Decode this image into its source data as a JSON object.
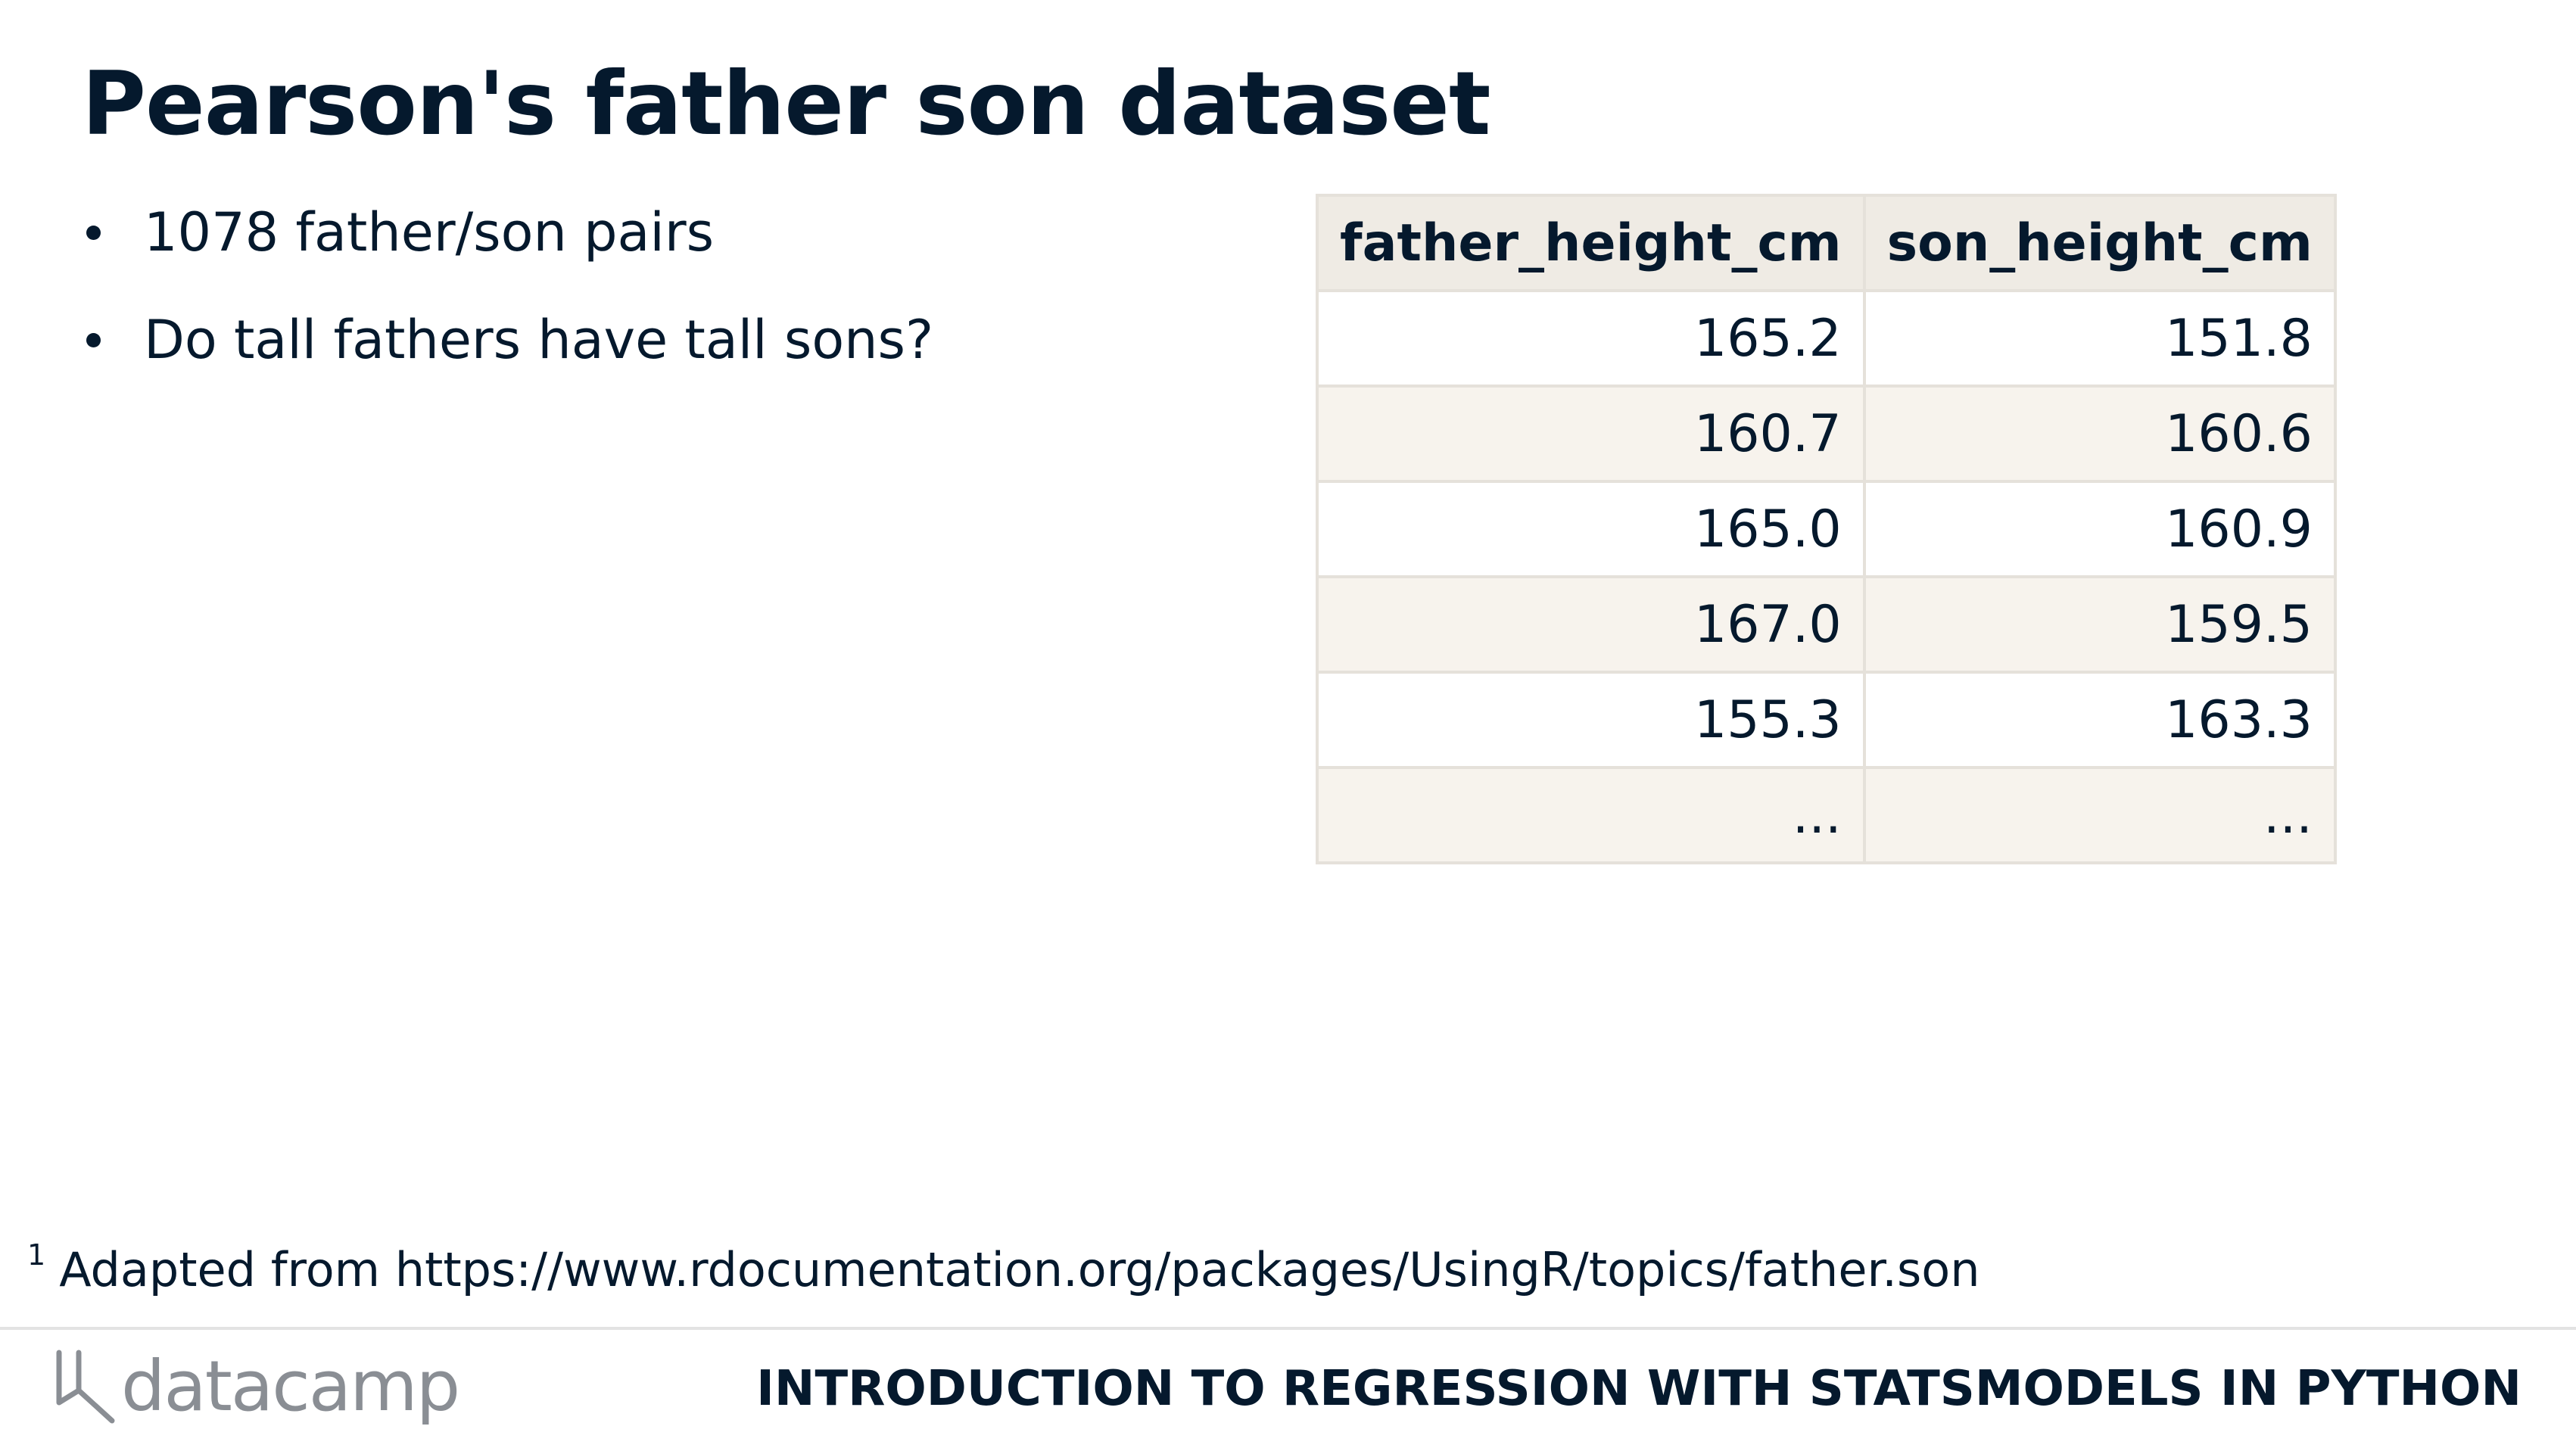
{
  "slide": {
    "title": "Pearson's father son dataset",
    "bullets": [
      "1078 father/son pairs",
      "Do tall fathers have tall sons?"
    ]
  },
  "table": {
    "headers": [
      "father_height_cm",
      "son_height_cm"
    ],
    "rows": [
      [
        "165.2",
        "151.8"
      ],
      [
        "160.7",
        "160.6"
      ],
      [
        "165.0",
        "160.9"
      ],
      [
        "167.0",
        "159.5"
      ],
      [
        "155.3",
        "163.3"
      ],
      [
        "...",
        "..."
      ]
    ]
  },
  "footnote": {
    "marker": "1",
    "text": "Adapted from https://www.rdocumentation.org/packages/UsingR/topics/father.son"
  },
  "footer": {
    "logo_text": "datacamp",
    "course_title": "INTRODUCTION TO REGRESSION WITH STATSMODELS IN PYTHON"
  }
}
